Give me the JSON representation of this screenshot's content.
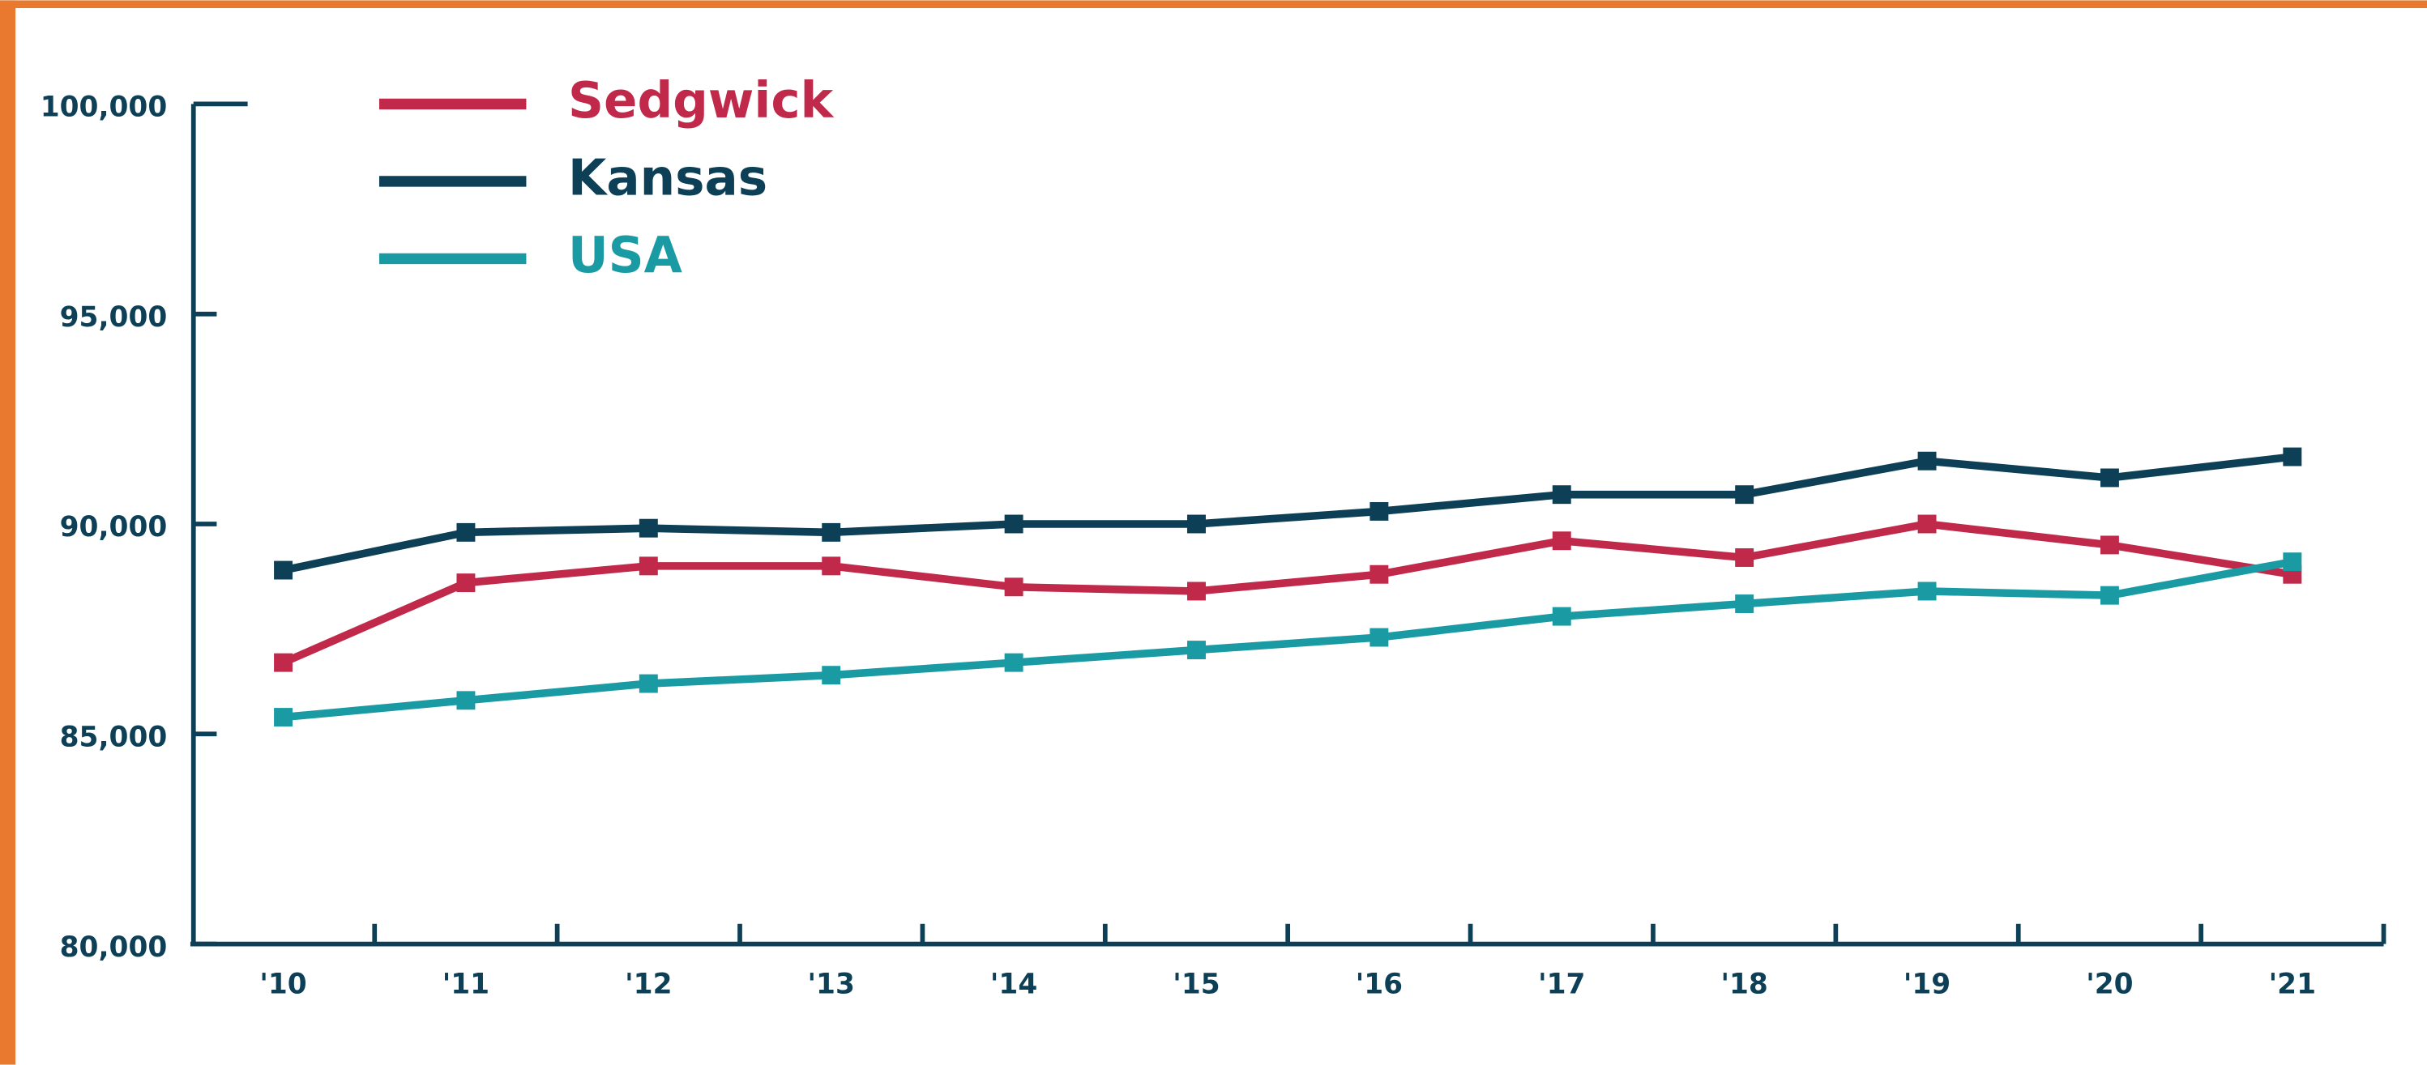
{
  "chart_data": {
    "type": "line",
    "categories": [
      "'10",
      "'11",
      "'12",
      "'13",
      "'14",
      "'15",
      "'16",
      "'17",
      "'18",
      "'19",
      "'20",
      "'21"
    ],
    "series": [
      {
        "name": "Sedgwick",
        "color": "#c0294a",
        "values": [
          86700,
          88600,
          89000,
          89000,
          88500,
          88400,
          88800,
          89600,
          89200,
          90000,
          89500,
          88800
        ]
      },
      {
        "name": "Kansas",
        "color": "#0d3f56",
        "values": [
          88900,
          89800,
          89900,
          89800,
          90000,
          90000,
          90300,
          90700,
          90700,
          91500,
          91100,
          91600
        ]
      },
      {
        "name": "USA",
        "color": "#1a9ba3",
        "values": [
          85400,
          85800,
          86200,
          86400,
          86700,
          87000,
          87300,
          87800,
          88100,
          88400,
          88300,
          89100
        ]
      }
    ],
    "ylim": [
      80000,
      100000
    ],
    "yticks": [
      {
        "value": 80000,
        "label": "80,000"
      },
      {
        "value": 85000,
        "label": "85,000"
      },
      {
        "value": 90000,
        "label": "90,000"
      },
      {
        "value": 95000,
        "label": "95,000"
      },
      {
        "value": 100000,
        "label": "100,000"
      }
    ]
  }
}
